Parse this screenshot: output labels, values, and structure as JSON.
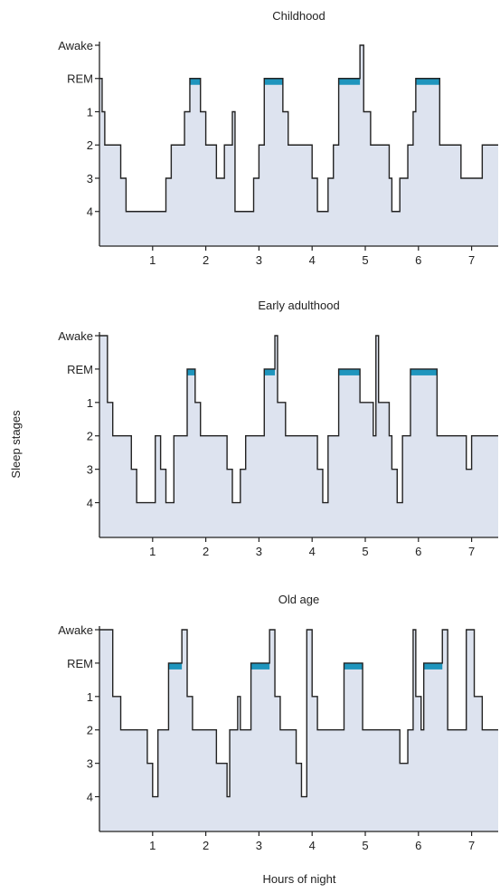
{
  "figure": {
    "ylabel": "Sleep stages",
    "xlabel": "Hours of night"
  },
  "colors": {
    "fill": "#dde3ef",
    "line": "#222222",
    "rem": "#1f95bd",
    "axis": "#222222"
  },
  "chart_data": [
    {
      "type": "area",
      "title": "Childhood",
      "xlabel": "Hours of night",
      "ylabel": "Sleep stages",
      "y_categories": [
        "Awake",
        "REM",
        "1",
        "2",
        "3",
        "4"
      ],
      "x_ticks": [
        "1",
        "2",
        "3",
        "4",
        "5",
        "6",
        "7"
      ],
      "xlim": [
        0,
        7.5
      ],
      "grid": false,
      "stage_levels": {
        "Awake": 0,
        "REM": 1,
        "1": 2,
        "2": 3,
        "3": 4,
        "4": 5
      },
      "points": [
        [
          0,
          1
        ],
        [
          0.05,
          2
        ],
        [
          0.1,
          3
        ],
        [
          0.4,
          4
        ],
        [
          0.5,
          5
        ],
        [
          1.25,
          4
        ],
        [
          1.35,
          3
        ],
        [
          1.6,
          2
        ],
        [
          1.7,
          1
        ],
        [
          1.9,
          2
        ],
        [
          2.0,
          3
        ],
        [
          2.2,
          4
        ],
        [
          2.35,
          3
        ],
        [
          2.5,
          2
        ],
        [
          2.55,
          5
        ],
        [
          2.9,
          4
        ],
        [
          3.0,
          3
        ],
        [
          3.1,
          1
        ],
        [
          3.45,
          2
        ],
        [
          3.55,
          3
        ],
        [
          4.0,
          4
        ],
        [
          4.1,
          5
        ],
        [
          4.3,
          4
        ],
        [
          4.4,
          3
        ],
        [
          4.5,
          1
        ],
        [
          4.9,
          0
        ],
        [
          4.97,
          2
        ],
        [
          5.1,
          3
        ],
        [
          5.45,
          4
        ],
        [
          5.5,
          5
        ],
        [
          5.65,
          4
        ],
        [
          5.8,
          3
        ],
        [
          5.9,
          2
        ],
        [
          5.95,
          1
        ],
        [
          6.4,
          3
        ],
        [
          6.8,
          4
        ],
        [
          7.2,
          3
        ],
        [
          7.5,
          3
        ]
      ],
      "rem_periods": [
        [
          1.7,
          1.9
        ],
        [
          3.1,
          3.45
        ],
        [
          4.5,
          4.9
        ],
        [
          5.95,
          6.4
        ]
      ]
    },
    {
      "type": "area",
      "title": "Early adulthood",
      "xlabel": "Hours of night",
      "ylabel": "Sleep stages",
      "y_categories": [
        "Awake",
        "REM",
        "1",
        "2",
        "3",
        "4"
      ],
      "x_ticks": [
        "1",
        "2",
        "3",
        "4",
        "5",
        "6",
        "7"
      ],
      "xlim": [
        0,
        7.5
      ],
      "grid": false,
      "stage_levels": {
        "Awake": 0,
        "REM": 1,
        "1": 2,
        "2": 3,
        "3": 4,
        "4": 5
      },
      "points": [
        [
          0,
          0
        ],
        [
          0.15,
          2
        ],
        [
          0.25,
          3
        ],
        [
          0.6,
          4
        ],
        [
          0.7,
          5
        ],
        [
          1.05,
          3
        ],
        [
          1.15,
          4
        ],
        [
          1.25,
          5
        ],
        [
          1.4,
          3
        ],
        [
          1.65,
          1
        ],
        [
          1.8,
          2
        ],
        [
          1.9,
          3
        ],
        [
          2.4,
          4
        ],
        [
          2.5,
          5
        ],
        [
          2.65,
          4
        ],
        [
          2.75,
          3
        ],
        [
          3.1,
          1
        ],
        [
          3.3,
          0
        ],
        [
          3.35,
          2
        ],
        [
          3.5,
          3
        ],
        [
          4.1,
          4
        ],
        [
          4.2,
          5
        ],
        [
          4.3,
          3
        ],
        [
          4.5,
          1
        ],
        [
          4.9,
          2
        ],
        [
          5.15,
          3
        ],
        [
          5.2,
          0
        ],
        [
          5.25,
          2
        ],
        [
          5.45,
          3
        ],
        [
          5.5,
          4
        ],
        [
          5.6,
          5
        ],
        [
          5.7,
          3
        ],
        [
          5.85,
          1
        ],
        [
          6.35,
          3
        ],
        [
          6.9,
          4
        ],
        [
          7.0,
          3
        ],
        [
          7.5,
          3
        ]
      ],
      "rem_periods": [
        [
          1.65,
          1.8
        ],
        [
          3.1,
          3.3
        ],
        [
          4.5,
          4.9
        ],
        [
          5.85,
          6.35
        ]
      ]
    },
    {
      "type": "area",
      "title": "Old age",
      "xlabel": "Hours of night",
      "ylabel": "Sleep stages",
      "y_categories": [
        "Awake",
        "REM",
        "1",
        "2",
        "3",
        "4"
      ],
      "x_ticks": [
        "1",
        "2",
        "3",
        "4",
        "5",
        "6",
        "7"
      ],
      "xlim": [
        0,
        7.5
      ],
      "grid": false,
      "stage_levels": {
        "Awake": 0,
        "REM": 1,
        "1": 2,
        "2": 3,
        "3": 4,
        "4": 5
      },
      "points": [
        [
          0,
          0
        ],
        [
          0.25,
          2
        ],
        [
          0.4,
          3
        ],
        [
          0.9,
          4
        ],
        [
          1.0,
          5
        ],
        [
          1.1,
          3
        ],
        [
          1.3,
          1
        ],
        [
          1.55,
          0
        ],
        [
          1.65,
          2
        ],
        [
          1.75,
          3
        ],
        [
          2.2,
          4
        ],
        [
          2.4,
          5
        ],
        [
          2.45,
          3
        ],
        [
          2.6,
          2
        ],
        [
          2.65,
          3
        ],
        [
          2.85,
          1
        ],
        [
          3.2,
          0
        ],
        [
          3.3,
          2
        ],
        [
          3.4,
          3
        ],
        [
          3.7,
          4
        ],
        [
          3.8,
          5
        ],
        [
          3.9,
          0
        ],
        [
          4.0,
          2
        ],
        [
          4.1,
          3
        ],
        [
          4.6,
          1
        ],
        [
          4.95,
          3
        ],
        [
          5.65,
          4
        ],
        [
          5.8,
          3
        ],
        [
          5.9,
          0
        ],
        [
          5.95,
          2
        ],
        [
          6.05,
          3
        ],
        [
          6.1,
          1
        ],
        [
          6.45,
          0
        ],
        [
          6.55,
          3
        ],
        [
          6.9,
          0
        ],
        [
          7.05,
          2
        ],
        [
          7.2,
          3
        ],
        [
          7.5,
          3
        ]
      ],
      "rem_periods": [
        [
          1.3,
          1.55
        ],
        [
          2.85,
          3.2
        ],
        [
          4.6,
          4.95
        ],
        [
          6.1,
          6.45
        ]
      ]
    }
  ]
}
